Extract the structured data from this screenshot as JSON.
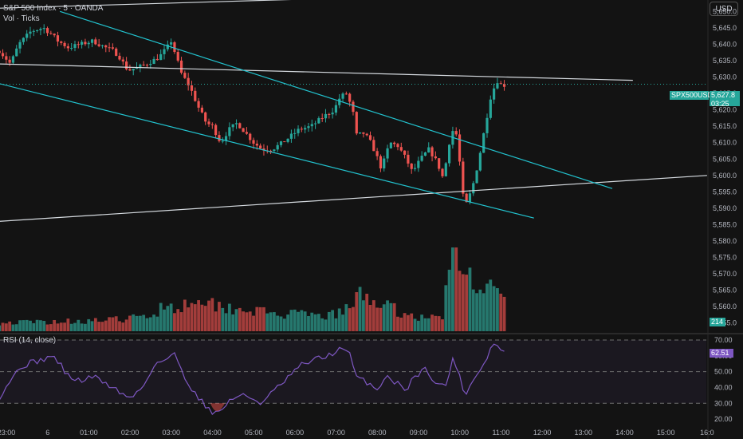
{
  "header": {
    "symbol_line": "S&P 500 Index · 5 · OANDA",
    "volume_line": "Vol · Ticks"
  },
  "currency_button": "USD",
  "price_tags": {
    "symbol": "SPX500USD",
    "last": "5,627.8",
    "countdown": "03:25",
    "volume": "214",
    "rsi": "62.51"
  },
  "rsi_label": "RSI (14, close)",
  "colors": {
    "background": "#131313",
    "up": "#26a69a",
    "down": "#ef5350",
    "up_vol": "#26786e",
    "down_vol": "#a33d3b",
    "channel": "#22c3cf",
    "trendline": "#d6dbe0",
    "rsi_line": "#7e57c2",
    "price_tag": "#26a69a"
  },
  "chart_data": [
    {
      "type": "candlestick",
      "title": "S&P 500 Index · 5 · OANDA",
      "y_ticks": [
        "5,650.0",
        "5,645.0",
        "5,640.0",
        "5,635.0",
        "5,630.0",
        "5,625.0",
        "5,620.0",
        "5,615.0",
        "5,610.0",
        "5,605.0",
        "5,600.0",
        "5,595.0",
        "5,590.0",
        "5,585.0",
        "5,580.0",
        "5,575.0",
        "5,570.0",
        "5,565.0",
        "5,560.0",
        "5,555.0"
      ],
      "x_ticks": [
        "23:00",
        "6",
        "01:00",
        "02:00",
        "03:00",
        "04:00",
        "05:00",
        "06:00",
        "07:00",
        "08:00",
        "09:00",
        "10:00",
        "11:00",
        "12:00",
        "13:00",
        "14:00",
        "15:00",
        "16:0"
      ],
      "x_tick_hours": [
        23,
        24,
        25,
        26,
        27,
        28,
        29,
        30,
        31,
        32,
        33,
        34,
        35,
        36,
        37,
        38,
        39,
        40
      ],
      "ylim": [
        5552.5,
        5653.0
      ],
      "last_price": 5627.8,
      "close_anchors": [
        [
          22.83,
          5638
        ],
        [
          23.1,
          5634
        ],
        [
          23.3,
          5640
        ],
        [
          23.6,
          5644
        ],
        [
          23.9,
          5645
        ],
        [
          24.1,
          5643
        ],
        [
          24.25,
          5641
        ],
        [
          24.5,
          5639
        ],
        [
          24.8,
          5640
        ],
        [
          25.1,
          5641
        ],
        [
          25.4,
          5639
        ],
        [
          25.6,
          5638
        ],
        [
          25.75,
          5636
        ],
        [
          25.95,
          5632
        ],
        [
          26.2,
          5633
        ],
        [
          26.4,
          5634
        ],
        [
          26.7,
          5636
        ],
        [
          26.9,
          5639
        ],
        [
          27.0,
          5641
        ],
        [
          27.25,
          5631
        ],
        [
          27.45,
          5627
        ],
        [
          27.65,
          5621
        ],
        [
          27.85,
          5616
        ],
        [
          28.0,
          5615
        ],
        [
          28.2,
          5610
        ],
        [
          28.4,
          5614
        ],
        [
          28.6,
          5616
        ],
        [
          28.8,
          5613
        ],
        [
          29.0,
          5610
        ],
        [
          29.2,
          5608
        ],
        [
          29.45,
          5608
        ],
        [
          29.7,
          5610
        ],
        [
          29.9,
          5612
        ],
        [
          30.1,
          5614
        ],
        [
          30.4,
          5615
        ],
        [
          30.7,
          5618
        ],
        [
          30.95,
          5620
        ],
        [
          31.1,
          5624
        ],
        [
          31.25,
          5625
        ],
        [
          31.4,
          5620
        ],
        [
          31.5,
          5612
        ],
        [
          31.65,
          5613
        ],
        [
          31.8,
          5611
        ],
        [
          31.95,
          5607
        ],
        [
          32.1,
          5602
        ],
        [
          32.3,
          5610
        ],
        [
          32.5,
          5609
        ],
        [
          32.7,
          5605
        ],
        [
          32.85,
          5601
        ],
        [
          33.05,
          5605
        ],
        [
          33.25,
          5608
        ],
        [
          33.45,
          5604
        ],
        [
          33.6,
          5599
        ],
        [
          33.8,
          5614
        ],
        [
          33.95,
          5612
        ],
        [
          34.05,
          5595
        ],
        [
          34.15,
          5591
        ],
        [
          34.3,
          5596
        ],
        [
          34.45,
          5604
        ],
        [
          34.6,
          5614
        ],
        [
          34.75,
          5624
        ],
        [
          34.9,
          5629
        ],
        [
          35.05,
          5627
        ],
        [
          35.1,
          5627.8
        ]
      ]
    },
    {
      "type": "bar",
      "title": "Vol · Ticks",
      "last_value": 214,
      "rel_anchors": [
        [
          22.83,
          0.1
        ],
        [
          24.5,
          0.12
        ],
        [
          25.5,
          0.13
        ],
        [
          26.5,
          0.18
        ],
        [
          26.9,
          0.35
        ],
        [
          27.2,
          0.25
        ],
        [
          27.6,
          0.45
        ],
        [
          27.9,
          0.35
        ],
        [
          28.2,
          0.3
        ],
        [
          28.6,
          0.28
        ],
        [
          29.0,
          0.25
        ],
        [
          29.5,
          0.2
        ],
        [
          30.0,
          0.2
        ],
        [
          30.6,
          0.18
        ],
        [
          31.0,
          0.2
        ],
        [
          31.4,
          0.3
        ],
        [
          31.6,
          0.45
        ],
        [
          31.9,
          0.38
        ],
        [
          32.3,
          0.28
        ],
        [
          32.7,
          0.2
        ],
        [
          33.2,
          0.15
        ],
        [
          33.6,
          0.2
        ],
        [
          33.8,
          1.0
        ],
        [
          34.0,
          0.8
        ],
        [
          34.2,
          0.65
        ],
        [
          34.5,
          0.6
        ],
        [
          34.8,
          0.5
        ],
        [
          35.1,
          0.35
        ]
      ]
    },
    {
      "type": "line",
      "title": "RSI (14, close)",
      "y_ticks": [
        "70.00",
        "60.00",
        "50.00",
        "40.00",
        "30.00",
        "20.00"
      ],
      "ylim": [
        15,
        73
      ],
      "bands": [
        30,
        50,
        70
      ],
      "last_value": 62.51,
      "anchors": [
        [
          22.83,
          34
        ],
        [
          23.1,
          45
        ],
        [
          23.4,
          54
        ],
        [
          23.8,
          57
        ],
        [
          24.1,
          60
        ],
        [
          24.3,
          55
        ],
        [
          24.5,
          47
        ],
        [
          24.8,
          44
        ],
        [
          25.1,
          47
        ],
        [
          25.4,
          43
        ],
        [
          25.7,
          38
        ],
        [
          26.0,
          33
        ],
        [
          26.3,
          40
        ],
        [
          26.6,
          55
        ],
        [
          26.9,
          58
        ],
        [
          27.1,
          61
        ],
        [
          27.3,
          48
        ],
        [
          27.6,
          35
        ],
        [
          27.9,
          27
        ],
        [
          28.1,
          23
        ],
        [
          28.35,
          30
        ],
        [
          28.6,
          35
        ],
        [
          28.9,
          34
        ],
        [
          29.2,
          30
        ],
        [
          29.5,
          38
        ],
        [
          29.8,
          45
        ],
        [
          30.1,
          53
        ],
        [
          30.4,
          57
        ],
        [
          30.7,
          59
        ],
        [
          31.1,
          64
        ],
        [
          31.3,
          63
        ],
        [
          31.5,
          46
        ],
        [
          31.8,
          43
        ],
        [
          32.0,
          38
        ],
        [
          32.2,
          48
        ],
        [
          32.5,
          42
        ],
        [
          32.7,
          39
        ],
        [
          32.9,
          47
        ],
        [
          33.2,
          52
        ],
        [
          33.4,
          43
        ],
        [
          33.65,
          40
        ],
        [
          33.85,
          60
        ],
        [
          34.0,
          46
        ],
        [
          34.15,
          35
        ],
        [
          34.35,
          47
        ],
        [
          34.6,
          55
        ],
        [
          34.8,
          68
        ],
        [
          35.0,
          64
        ],
        [
          35.1,
          62.51
        ]
      ]
    }
  ]
}
